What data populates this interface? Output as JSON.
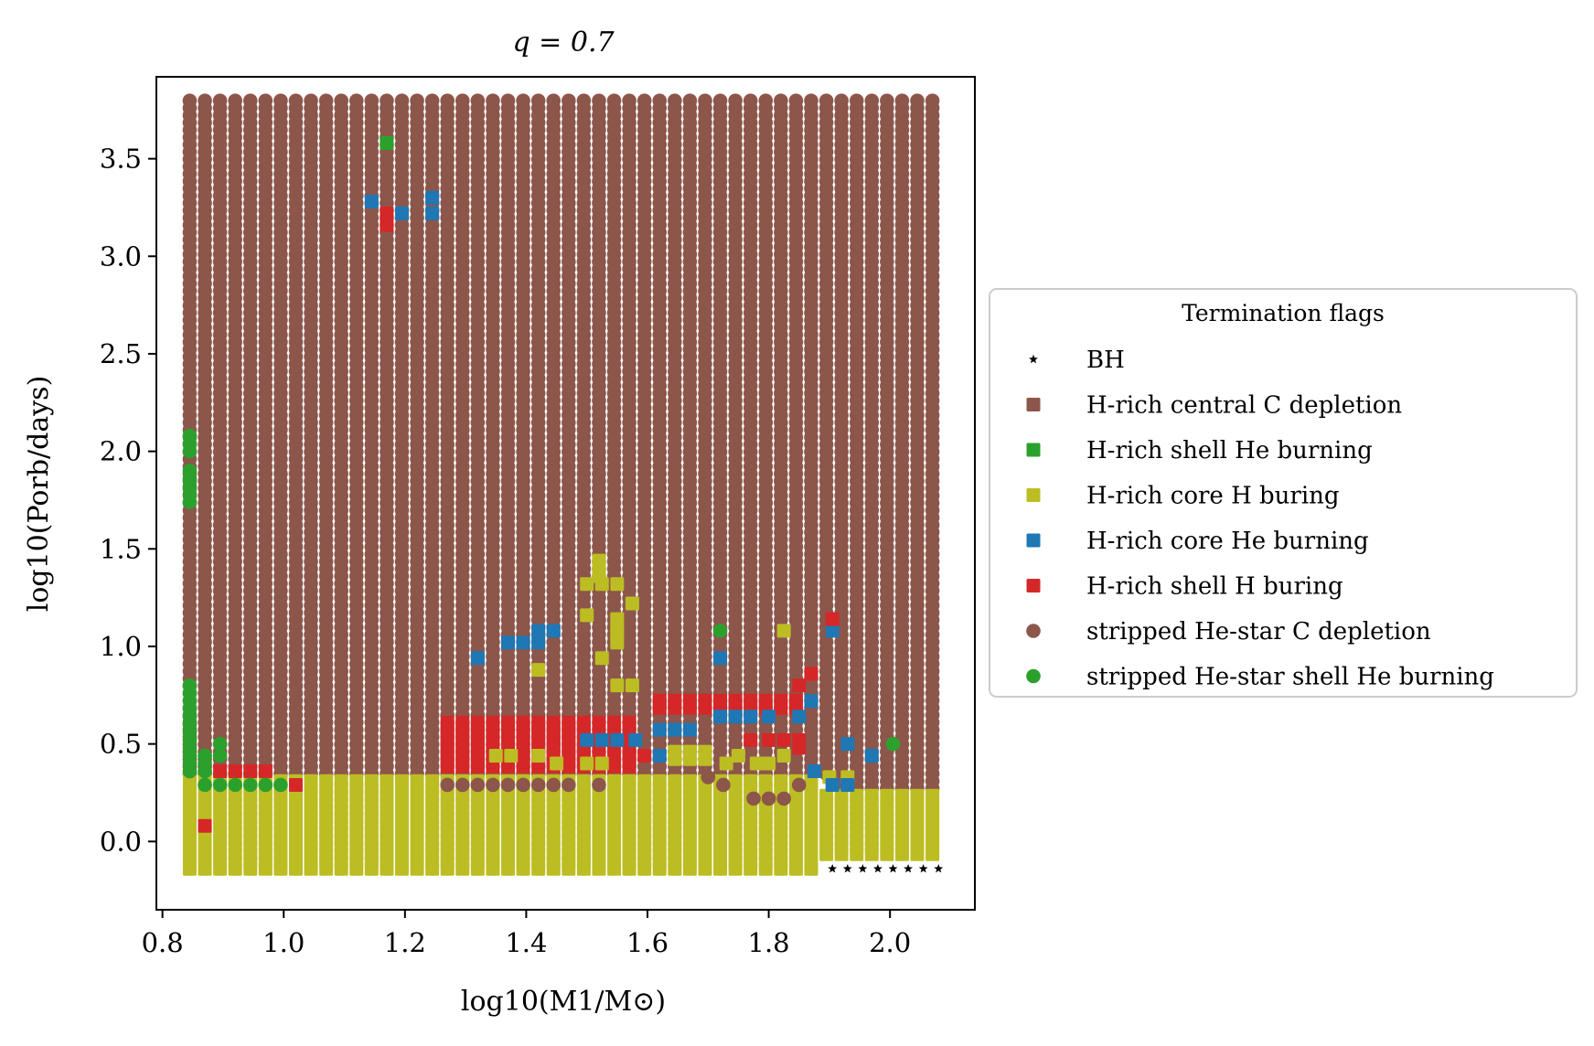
{
  "chart_data": {
    "type": "scatter",
    "title": "q = 0.7",
    "xlabel": "log10(M1/M⊙)",
    "ylabel": "log10(Porb/days)",
    "xlim": [
      0.79,
      2.14
    ],
    "ylim": [
      -0.35,
      3.92
    ],
    "xticks": [
      {
        "value": 0.8,
        "label": "0.8"
      },
      {
        "value": 1.0,
        "label": "1.0"
      },
      {
        "value": 1.2,
        "label": "1.2"
      },
      {
        "value": 1.4,
        "label": "1.4"
      },
      {
        "value": 1.6,
        "label": "1.6"
      },
      {
        "value": 1.8,
        "label": "1.8"
      },
      {
        "value": 2.0,
        "label": "2.0"
      }
    ],
    "yticks": [
      {
        "value": 0.0,
        "label": "0.0"
      },
      {
        "value": 0.5,
        "label": "0.5"
      },
      {
        "value": 1.0,
        "label": "1.0"
      },
      {
        "value": 1.5,
        "label": "1.5"
      },
      {
        "value": 2.0,
        "label": "2.0"
      },
      {
        "value": 2.5,
        "label": "2.5"
      },
      {
        "value": 3.0,
        "label": "3.0"
      },
      {
        "value": 3.5,
        "label": "3.5"
      }
    ],
    "grid": false,
    "legend": {
      "title": "Termination flags",
      "placement": "outside-right"
    },
    "grid_sampling": {
      "x_min": 0.845,
      "x_max": 2.08,
      "x_step": 0.025,
      "y_min": -0.14,
      "y_max": 3.8,
      "y_step": 0.0375
    },
    "series": [
      {
        "name": "BH",
        "marker": "star",
        "color": "#000000"
      },
      {
        "name": "H-rich central C depletion",
        "marker": "square",
        "color": "#8c564b"
      },
      {
        "name": "H-rich shell He burning",
        "marker": "square",
        "color": "#2ca02c"
      },
      {
        "name": "H-rich core H buring",
        "marker": "square",
        "color": "#bcbd22"
      },
      {
        "name": "H-rich core He burning",
        "marker": "square",
        "color": "#1f77b4"
      },
      {
        "name": "H-rich shell H buring",
        "marker": "square",
        "color": "#d62728"
      },
      {
        "name": "stripped He-star C depletion",
        "marker": "circle",
        "color": "#8c564b"
      },
      {
        "name": "stripped He-star shell He burning",
        "marker": "circle",
        "color": "#2ca02c"
      }
    ],
    "regions": [
      {
        "series": 6,
        "x": [
          0.845,
          2.08
        ],
        "y": [
          0.33,
          3.8
        ]
      },
      {
        "series": 6,
        "x": [
          1.9,
          2.08
        ],
        "y": [
          0.25,
          0.33
        ]
      },
      {
        "series": 3,
        "x": [
          0.845,
          1.88
        ],
        "y": [
          -0.14,
          0.31
        ]
      },
      {
        "series": 3,
        "x": [
          1.88,
          2.08
        ],
        "y": [
          -0.1,
          0.24
        ]
      },
      {
        "series": 5,
        "x": [
          1.27,
          1.58
        ],
        "y": [
          0.37,
          0.64
        ]
      },
      {
        "series": 5,
        "x": [
          1.62,
          1.85
        ],
        "y": [
          0.66,
          0.74
        ]
      },
      {
        "series": 4,
        "x": [
          1.62,
          1.68
        ],
        "y": [
          0.56,
          0.6
        ]
      },
      {
        "series": 3,
        "x": [
          1.63,
          1.7
        ],
        "y": [
          0.4,
          0.46
        ]
      }
    ],
    "points": {
      "0": [
        [
          1.905,
          -0.14
        ],
        [
          1.93,
          -0.14
        ],
        [
          1.955,
          -0.14
        ],
        [
          1.98,
          -0.14
        ],
        [
          2.005,
          -0.14
        ],
        [
          2.03,
          -0.14
        ],
        [
          2.055,
          -0.14
        ],
        [
          2.08,
          -0.14
        ]
      ],
      "2": [
        [
          1.17,
          3.58
        ]
      ],
      "3": [
        [
          1.52,
          1.44
        ],
        [
          1.52,
          1.4
        ],
        [
          1.52,
          1.36
        ],
        [
          1.5,
          1.32
        ],
        [
          1.525,
          1.32
        ],
        [
          1.55,
          1.32
        ],
        [
          1.5,
          1.16
        ],
        [
          1.575,
          1.22
        ],
        [
          1.55,
          1.14
        ],
        [
          1.55,
          1.1
        ],
        [
          1.55,
          1.06
        ],
        [
          1.55,
          1.02
        ],
        [
          1.525,
          0.94
        ],
        [
          1.42,
          0.88
        ],
        [
          1.55,
          0.8
        ],
        [
          1.575,
          0.8
        ],
        [
          1.825,
          1.08
        ],
        [
          1.35,
          0.44
        ],
        [
          1.375,
          0.44
        ],
        [
          1.42,
          0.44
        ],
        [
          1.45,
          0.4
        ],
        [
          1.5,
          0.4
        ],
        [
          1.525,
          0.4
        ],
        [
          1.73,
          0.4
        ],
        [
          1.75,
          0.44
        ],
        [
          1.78,
          0.4
        ],
        [
          1.8,
          0.4
        ],
        [
          1.825,
          0.44
        ],
        [
          1.9,
          0.33
        ],
        [
          1.93,
          0.33
        ]
      ],
      "4": [
        [
          1.145,
          3.28
        ],
        [
          1.195,
          3.22
        ],
        [
          1.245,
          3.22
        ],
        [
          1.245,
          3.3
        ],
        [
          1.32,
          0.94
        ],
        [
          1.37,
          1.02
        ],
        [
          1.395,
          1.02
        ],
        [
          1.42,
          1.02
        ],
        [
          1.42,
          1.08
        ],
        [
          1.445,
          1.08
        ],
        [
          1.5,
          0.52
        ],
        [
          1.525,
          0.52
        ],
        [
          1.55,
          0.52
        ],
        [
          1.58,
          0.52
        ],
        [
          1.62,
          0.44
        ],
        [
          1.72,
          0.94
        ],
        [
          1.72,
          0.64
        ],
        [
          1.745,
          0.64
        ],
        [
          1.77,
          0.64
        ],
        [
          1.8,
          0.64
        ],
        [
          1.85,
          0.64
        ],
        [
          1.87,
          0.72
        ],
        [
          1.875,
          0.36
        ],
        [
          1.905,
          0.29
        ],
        [
          1.93,
          0.29
        ],
        [
          1.93,
          0.5
        ],
        [
          1.97,
          0.44
        ],
        [
          1.905,
          1.08
        ]
      ],
      "5": [
        [
          0.87,
          0.08
        ],
        [
          0.895,
          0.36
        ],
        [
          0.92,
          0.36
        ],
        [
          0.945,
          0.36
        ],
        [
          0.97,
          0.36
        ],
        [
          1.02,
          0.29
        ],
        [
          1.17,
          3.16
        ],
        [
          1.17,
          3.22
        ],
        [
          1.57,
          0.44
        ],
        [
          1.595,
          0.44
        ],
        [
          1.85,
          0.8
        ],
        [
          1.87,
          0.86
        ],
        [
          1.77,
          0.52
        ],
        [
          1.8,
          0.52
        ],
        [
          1.825,
          0.52
        ],
        [
          1.85,
          0.52
        ],
        [
          1.85,
          0.48
        ],
        [
          1.905,
          1.14
        ]
      ],
      "6": [
        [
          1.27,
          0.29
        ],
        [
          1.295,
          0.29
        ],
        [
          1.32,
          0.29
        ],
        [
          1.345,
          0.29
        ],
        [
          1.37,
          0.29
        ],
        [
          1.395,
          0.29
        ],
        [
          1.42,
          0.29
        ],
        [
          1.445,
          0.29
        ],
        [
          1.47,
          0.29
        ],
        [
          1.52,
          0.29
        ],
        [
          1.7,
          0.33
        ],
        [
          1.725,
          0.29
        ],
        [
          1.775,
          0.22
        ],
        [
          1.8,
          0.22
        ],
        [
          1.825,
          0.22
        ],
        [
          1.85,
          0.29
        ]
      ],
      "7": [
        [
          0.845,
          2.08
        ],
        [
          0.845,
          2.04
        ],
        [
          0.845,
          2.0
        ],
        [
          0.845,
          1.9
        ],
        [
          0.845,
          1.86
        ],
        [
          0.845,
          1.82
        ],
        [
          0.845,
          1.78
        ],
        [
          0.845,
          1.74
        ],
        [
          0.845,
          0.8
        ],
        [
          0.845,
          0.76
        ],
        [
          0.845,
          0.72
        ],
        [
          0.845,
          0.68
        ],
        [
          0.845,
          0.64
        ],
        [
          0.845,
          0.6
        ],
        [
          0.845,
          0.56
        ],
        [
          0.845,
          0.52
        ],
        [
          0.845,
          0.48
        ],
        [
          0.845,
          0.44
        ],
        [
          0.845,
          0.4
        ],
        [
          0.845,
          0.36
        ],
        [
          0.87,
          0.44
        ],
        [
          0.87,
          0.4
        ],
        [
          0.87,
          0.36
        ],
        [
          0.87,
          0.29
        ],
        [
          0.895,
          0.5
        ],
        [
          0.895,
          0.44
        ],
        [
          0.895,
          0.29
        ],
        [
          0.92,
          0.29
        ],
        [
          0.945,
          0.29
        ],
        [
          0.97,
          0.29
        ],
        [
          0.995,
          0.29
        ],
        [
          1.72,
          1.08
        ],
        [
          2.005,
          0.5
        ]
      ]
    }
  }
}
